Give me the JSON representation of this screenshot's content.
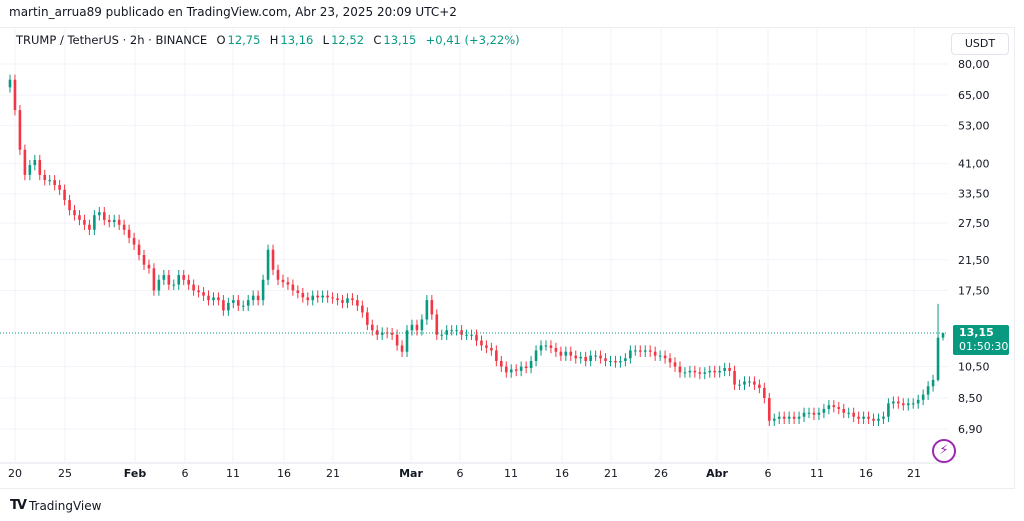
{
  "attribution": "martin_arrua89 publicado en TradingView.com, Abr 23, 2025 20:09 UTC+2",
  "legend": {
    "symbol": "TRUMP / TetherUS · 2h · BINANCE",
    "o_label": "O",
    "o": "12,75",
    "h_label": "H",
    "h": "13,16",
    "l_label": "L",
    "l": "12,52",
    "c_label": "C",
    "c": "13,15",
    "change": "+0,41 (+3,22%)"
  },
  "currency": "USDT",
  "price_tag": {
    "price": "13,15",
    "countdown": "01:50:30"
  },
  "logo": "TradingView",
  "colors": {
    "up": "#089981",
    "down": "#f23645",
    "accent": "#9c27b0"
  },
  "chart_data": {
    "type": "candlestick",
    "title": "TRUMP / TetherUS · 2h · BINANCE",
    "y_scale": "log",
    "ylim": [
      5.8,
      85
    ],
    "y_ticks": [
      "80,00",
      "65,00",
      "53,00",
      "41,00",
      "33,50",
      "27,50",
      "21,50",
      "17,50",
      "10,50",
      "8,50",
      "6,90"
    ],
    "y_tick_values": [
      80,
      65,
      53,
      41,
      33.5,
      27.5,
      21.5,
      17.5,
      10.5,
      8.5,
      6.9
    ],
    "x_ticks": [
      "20",
      "25",
      "Feb",
      "6",
      "11",
      "16",
      "21",
      "Mar",
      "6",
      "11",
      "16",
      "21",
      "26",
      "Abr",
      "6",
      "11",
      "16",
      "21"
    ],
    "x_start": "2025-01-18",
    "x_end": "2025-04-23",
    "sample_interval": "12h",
    "closes": [
      72,
      58.7,
      45,
      38,
      40.6,
      42,
      38,
      36.7,
      36.7,
      35.5,
      34.4,
      32.1,
      30,
      29,
      28.1,
      27.2,
      26.3,
      29,
      29.6,
      28.1,
      27.7,
      28.1,
      27.2,
      26.3,
      24.9,
      23.8,
      22.2,
      20.8,
      20.3,
      17.5,
      18.8,
      19.4,
      18.2,
      18.2,
      19.4,
      18.8,
      18.2,
      17.5,
      17.3,
      16.9,
      16.4,
      16.7,
      16.4,
      15.3,
      16.1,
      16.4,
      15.8,
      15.8,
      16.4,
      16.9,
      16.4,
      18.8,
      23,
      20.1,
      18.8,
      18.5,
      18.2,
      17.5,
      17.2,
      16.7,
      16.4,
      16.9,
      16.7,
      16.9,
      16.7,
      16.6,
      16.4,
      16.1,
      16.6,
      16.4,
      15.8,
      15.1,
      13.9,
      13.4,
      13,
      13.2,
      13.15,
      13,
      12.1,
      11.6,
      13.4,
      13.9,
      13.4,
      14.4,
      16.4,
      14.9,
      13,
      13,
      13.4,
      13.4,
      13.4,
      13,
      13,
      13,
      12.5,
      12.1,
      11.9,
      11.7,
      10.9,
      10.5,
      10.1,
      10.3,
      10.2,
      10.5,
      10.4,
      10.9,
      11.7,
      12.1,
      12.1,
      11.9,
      11.6,
      11.3,
      11.6,
      11.3,
      11.1,
      11.2,
      10.9,
      11.3,
      11.3,
      11.1,
      10.9,
      10.9,
      10.8,
      10.9,
      11.1,
      11.7,
      11.7,
      11.6,
      11.7,
      11.6,
      11.3,
      11.3,
      11.1,
      10.8,
      10.5,
      10.1,
      10.1,
      10.2,
      10.1,
      10.0,
      10.1,
      10.2,
      10.1,
      10.2,
      10.4,
      10.2,
      9.3,
      9.3,
      9.5,
      9.5,
      9.3,
      9.1,
      8.5,
      7.3,
      7.4,
      7.5,
      7.4,
      7.5,
      7.4,
      7.5,
      7.7,
      7.7,
      7.6,
      7.7,
      7.9,
      8.1,
      8.0,
      7.9,
      7.7,
      7.7,
      7.5,
      7.4,
      7.5,
      7.4,
      7.3,
      7.4,
      7.5,
      8.2,
      8.3,
      8.2,
      8.1,
      8.2,
      8.2,
      8.4,
      8.7,
      9.2,
      9.6
    ],
    "last_candles": [
      {
        "o": 9.6,
        "h": 16.0,
        "l": 9.5,
        "c": 12.75
      },
      {
        "o": 12.75,
        "h": 13.16,
        "l": 12.52,
        "c": 13.15
      }
    ],
    "last_price": 13.15
  }
}
